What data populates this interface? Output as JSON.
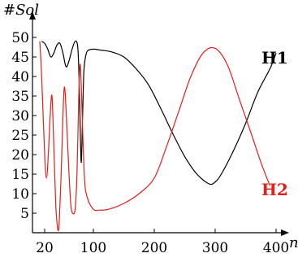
{
  "chart_data": {
    "type": "line",
    "ylabel": "#Sol",
    "xlabel": "n",
    "xlim": [
      0,
      400
    ],
    "ylim": [
      0,
      50
    ],
    "x_ticks": [
      20,
      100,
      200,
      300,
      400
    ],
    "y_ticks": [
      5,
      10,
      15,
      20,
      25,
      30,
      35,
      40,
      45,
      50
    ],
    "grid": false,
    "legend": "inline",
    "series": [
      {
        "name": "H1",
        "color": "#000000",
        "points": [
          [
            15,
            49
          ],
          [
            20,
            48.5
          ],
          [
            25,
            47
          ],
          [
            30,
            45
          ],
          [
            35,
            46
          ],
          [
            40,
            48
          ],
          [
            45,
            48.5
          ],
          [
            50,
            46
          ],
          [
            55,
            42.5
          ],
          [
            60,
            44
          ],
          [
            65,
            47
          ],
          [
            70,
            49
          ],
          [
            74,
            48
          ],
          [
            76,
            42
          ],
          [
            78,
            30
          ],
          [
            80,
            18
          ],
          [
            82,
            28
          ],
          [
            84,
            40
          ],
          [
            86,
            44
          ],
          [
            90,
            46.5
          ],
          [
            100,
            47
          ],
          [
            110,
            46.8
          ],
          [
            130,
            46.3
          ],
          [
            150,
            45
          ],
          [
            170,
            42
          ],
          [
            190,
            38
          ],
          [
            210,
            32
          ],
          [
            230,
            25.5
          ],
          [
            250,
            19.5
          ],
          [
            270,
            15
          ],
          [
            290,
            12.5
          ],
          [
            300,
            13
          ],
          [
            310,
            15
          ],
          [
            330,
            21
          ],
          [
            350,
            28
          ],
          [
            370,
            36
          ],
          [
            390,
            42
          ],
          [
            400,
            46
          ]
        ]
      },
      {
        "name": "H2",
        "color": "#e0201b",
        "points": [
          [
            12,
            49
          ],
          [
            15,
            40
          ],
          [
            20,
            20
          ],
          [
            23,
            14
          ],
          [
            26,
            20
          ],
          [
            29,
            30
          ],
          [
            32,
            35
          ],
          [
            35,
            22
          ],
          [
            38,
            8
          ],
          [
            40,
            3
          ],
          [
            42,
            0.5
          ],
          [
            44,
            3
          ],
          [
            47,
            15
          ],
          [
            50,
            30
          ],
          [
            52,
            37
          ],
          [
            54,
            35
          ],
          [
            57,
            25
          ],
          [
            60,
            15
          ],
          [
            63,
            7
          ],
          [
            66,
            5
          ],
          [
            70,
            6
          ],
          [
            73,
            15
          ],
          [
            76,
            35
          ],
          [
            78,
            43
          ],
          [
            80,
            38
          ],
          [
            85,
            15
          ],
          [
            90,
            9
          ],
          [
            100,
            6
          ],
          [
            110,
            5.8
          ],
          [
            125,
            6
          ],
          [
            150,
            7.5
          ],
          [
            175,
            10
          ],
          [
            200,
            14
          ],
          [
            220,
            22
          ],
          [
            240,
            31
          ],
          [
            260,
            40
          ],
          [
            280,
            46
          ],
          [
            300,
            47.2
          ],
          [
            320,
            43
          ],
          [
            340,
            34
          ],
          [
            360,
            25
          ],
          [
            375,
            18
          ],
          [
            390,
            12
          ]
        ]
      }
    ]
  }
}
